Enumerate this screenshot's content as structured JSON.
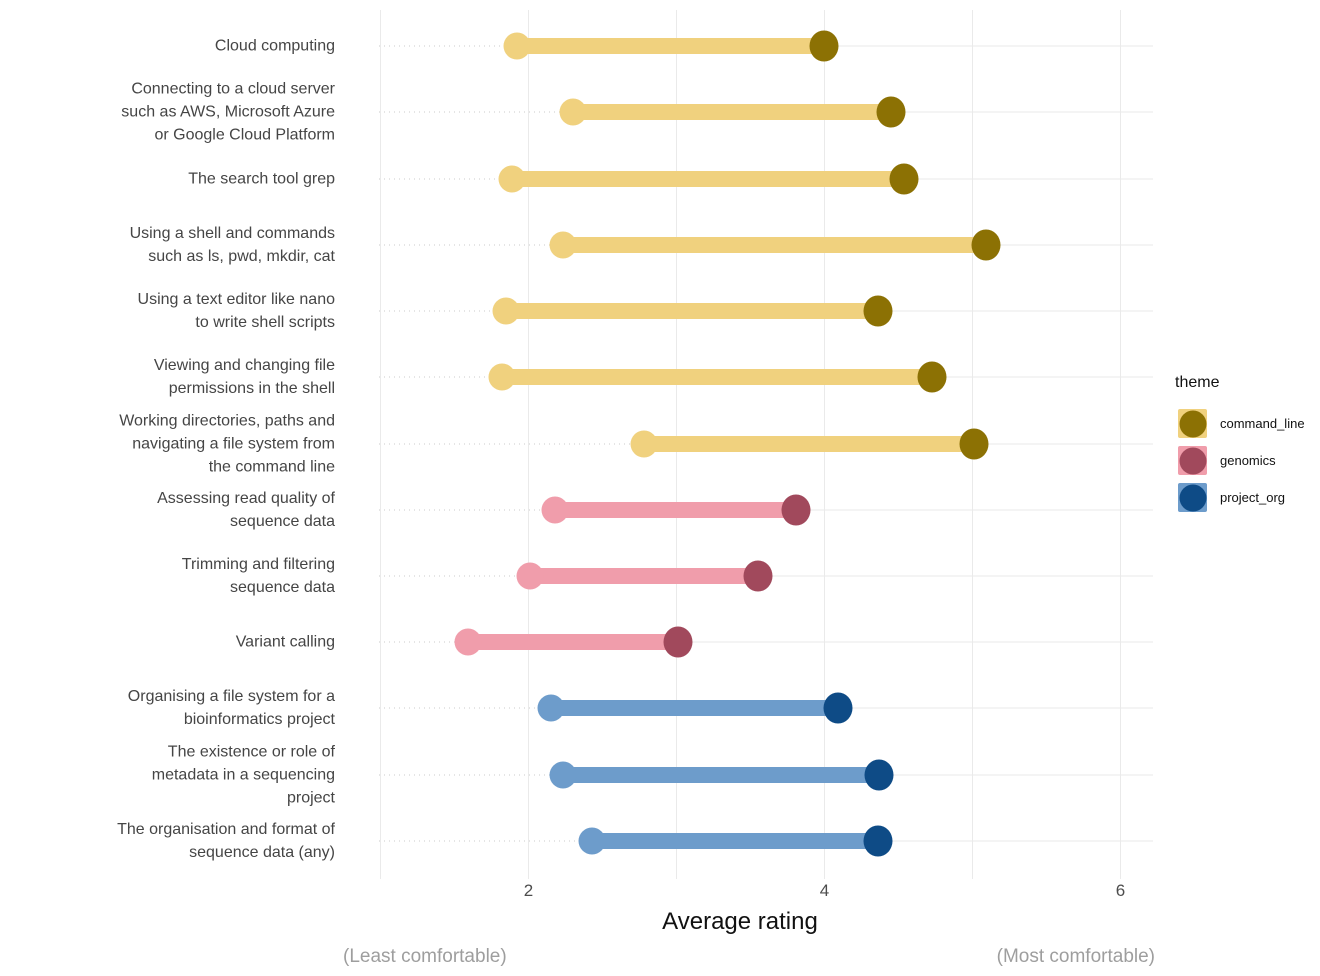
{
  "chart_data": {
    "type": "dumbbell",
    "title": "",
    "xlabel": "Average rating",
    "x_sub_left": "(Least comfortable)",
    "x_sub_right": "(Most comfortable)",
    "x_ticks": [
      2,
      4,
      6
    ],
    "x_minor_ticks": [
      1,
      3,
      5
    ],
    "xlim": [
      0.99,
      6.22
    ],
    "grid": "light vertical lines at every integer; dotted horizontal guide per category",
    "legend": {
      "title": "theme",
      "position": "right",
      "entries": [
        {
          "label": "command_line",
          "light": "#F0D17E",
          "dark": "#8C7104"
        },
        {
          "label": "genomics",
          "light": "#F09DAB",
          "dark": "#A1495C"
        },
        {
          "label": "project_org",
          "light": "#6D9CCB",
          "dark": "#0E4B86"
        }
      ]
    },
    "series_meaning": {
      "pre": "light dot (lower average rating)",
      "post": "dark dot (higher average rating)"
    },
    "rows": [
      {
        "label_lines": [
          "Cloud computing"
        ],
        "theme": "command_line",
        "pre": 1.92,
        "post": 4.0
      },
      {
        "label_lines": [
          "Connecting to a cloud server",
          "such as AWS, Microsoft Azure",
          "or Google Cloud Platform"
        ],
        "theme": "command_line",
        "pre": 2.3,
        "post": 4.45
      },
      {
        "label_lines": [
          "The search tool grep"
        ],
        "theme": "command_line",
        "pre": 1.89,
        "post": 4.54
      },
      {
        "label_lines": [
          "Using a shell and commands",
          "such as ls, pwd, mkdir, cat"
        ],
        "theme": "command_line",
        "pre": 2.23,
        "post": 5.09
      },
      {
        "label_lines": [
          "Using a text editor like nano",
          "to write shell scripts"
        ],
        "theme": "command_line",
        "pre": 1.85,
        "post": 4.36
      },
      {
        "label_lines": [
          "Viewing and changing file",
          "permissions in the shell"
        ],
        "theme": "command_line",
        "pre": 1.82,
        "post": 4.73
      },
      {
        "label_lines": [
          "Working directories, paths and",
          "navigating a file system from",
          "the command line"
        ],
        "theme": "command_line",
        "pre": 2.78,
        "post": 5.01
      },
      {
        "label_lines": [
          "Assessing read quality of",
          "sequence data"
        ],
        "theme": "genomics",
        "pre": 2.18,
        "post": 3.81
      },
      {
        "label_lines": [
          "Trimming and filtering",
          "sequence data"
        ],
        "theme": "genomics",
        "pre": 2.01,
        "post": 3.55
      },
      {
        "label_lines": [
          "Variant calling"
        ],
        "theme": "genomics",
        "pre": 1.59,
        "post": 3.01
      },
      {
        "label_lines": [
          "Organising a file system for a",
          "bioinformatics project"
        ],
        "theme": "project_org",
        "pre": 2.15,
        "post": 4.09
      },
      {
        "label_lines": [
          "The existence or role of",
          "metadata in a sequencing",
          "project"
        ],
        "theme": "project_org",
        "pre": 2.23,
        "post": 4.37
      },
      {
        "label_lines": [
          "The organisation and format of",
          "sequence data (any)"
        ],
        "theme": "project_org",
        "pre": 2.43,
        "post": 4.36
      }
    ]
  },
  "colors": {
    "background": "#FFFFFF",
    "gridline_vertical": "#EAEAEA",
    "guide_dotted": "#CBCBCB",
    "guide_solid": "#E9E9E9",
    "axis_text": "#4D4D4D",
    "category_text": "#454545",
    "axis_title": "#111111",
    "caption_text": "#9E9E9E"
  }
}
